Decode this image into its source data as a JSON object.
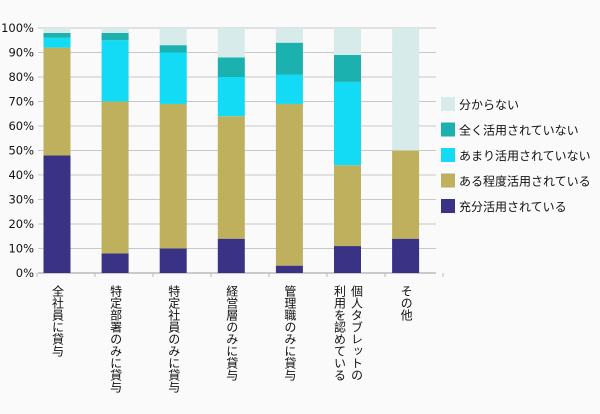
{
  "chart_data": {
    "type": "bar",
    "stacked": true,
    "categories": [
      "全社員に貸与",
      "特定部署のみに貸与",
      "特定社員のみに貸与",
      "経営層のみに貸与",
      "管理職のみに貸与",
      "個人タブレットの利用を認めている",
      "その他"
    ],
    "series": [
      {
        "name": "充分活用されている",
        "color": "#3a3385",
        "values": [
          48,
          8,
          10,
          14,
          3,
          11,
          14
        ]
      },
      {
        "name": "ある程度活用されている",
        "color": "#bfb05e",
        "values": [
          44,
          62,
          59,
          50,
          66,
          33,
          36
        ]
      },
      {
        "name": "あまり活用されていない",
        "color": "#14dbf5",
        "values": [
          4,
          25,
          21,
          16,
          12,
          34,
          0
        ]
      },
      {
        "name": "全く活用されていない",
        "color": "#1ab1af",
        "values": [
          2,
          3,
          3,
          8,
          13,
          11,
          0
        ]
      },
      {
        "name": "分からない",
        "color": "#d6ebea",
        "values": [
          2,
          2,
          7,
          12,
          6,
          11,
          50
        ]
      }
    ],
    "yticks": [
      "0%",
      "10%",
      "20%",
      "30%",
      "40%",
      "50%",
      "60%",
      "70%",
      "80%",
      "90%",
      "100%"
    ],
    "ylim": [
      0,
      100
    ],
    "grid": true,
    "legend": "right"
  }
}
